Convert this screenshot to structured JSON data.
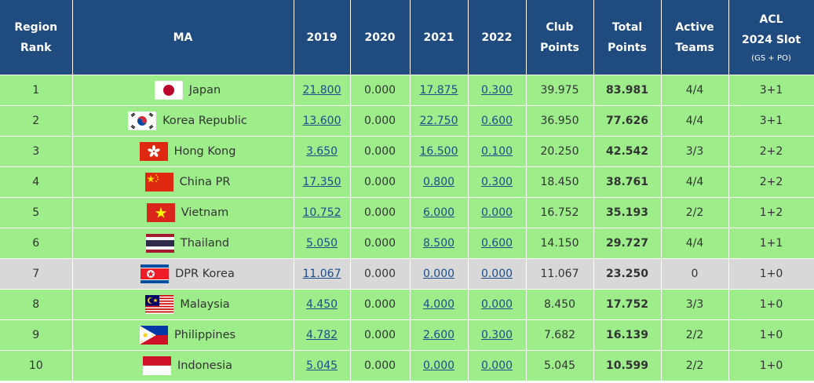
{
  "table": {
    "headers": {
      "rank": [
        "Region",
        "Rank"
      ],
      "ma": "MA",
      "y2019": "2019",
      "y2020": "2020",
      "y2021": "2021",
      "y2022": "2022",
      "club": [
        "Club",
        "Points"
      ],
      "total": [
        "Total",
        "Points"
      ],
      "active": [
        "Active",
        "Teams"
      ],
      "slot": [
        "ACL",
        "2024 Slot",
        "(GS + PO)"
      ]
    },
    "rows": [
      {
        "rank": "1",
        "flag": "japan-flag-icon",
        "ma": "Japan",
        "y2019": "21.800",
        "y2020": "0.000",
        "y2021": "17.875",
        "y2022": "0.300",
        "club": "39.975",
        "total": "83.981",
        "active": "4/4",
        "slot": "3+1"
      },
      {
        "rank": "2",
        "flag": "korea-republic-flag-icon",
        "ma": "Korea Republic",
        "y2019": "13.600",
        "y2020": "0.000",
        "y2021": "22.750",
        "y2022": "0.600",
        "club": "36.950",
        "total": "77.626",
        "active": "4/4",
        "slot": "3+1"
      },
      {
        "rank": "3",
        "flag": "hong-kong-flag-icon",
        "ma": "Hong Kong",
        "y2019": "3.650",
        "y2020": "0.000",
        "y2021": "16.500",
        "y2022": "0.100",
        "club": "20.250",
        "total": "42.542",
        "active": "3/3",
        "slot": "2+2"
      },
      {
        "rank": "4",
        "flag": "china-pr-flag-icon",
        "ma": "China PR",
        "y2019": "17.350",
        "y2020": "0.000",
        "y2021": "0.800",
        "y2022": "0.300",
        "club": "18.450",
        "total": "38.761",
        "active": "4/4",
        "slot": "2+2"
      },
      {
        "rank": "5",
        "flag": "vietnam-flag-icon",
        "ma": "Vietnam",
        "y2019": "10.752",
        "y2020": "0.000",
        "y2021": "6.000",
        "y2022": "0.000",
        "club": "16.752",
        "total": "35.193",
        "active": "2/2",
        "slot": "1+2"
      },
      {
        "rank": "6",
        "flag": "thailand-flag-icon",
        "ma": "Thailand",
        "y2019": "5.050",
        "y2020": "0.000",
        "y2021": "8.500",
        "y2022": "0.600",
        "club": "14.150",
        "total": "29.727",
        "active": "4/4",
        "slot": "1+1"
      },
      {
        "rank": "7",
        "flag": "dpr-korea-flag-icon",
        "ma": "DPR Korea",
        "y2019": "11.067",
        "y2020": "0.000",
        "y2021": "0.000",
        "y2022": "0.000",
        "club": "11.067",
        "total": "23.250",
        "active": "0",
        "slot": "1+0"
      },
      {
        "rank": "8",
        "flag": "malaysia-flag-icon",
        "ma": "Malaysia",
        "y2019": "4.450",
        "y2020": "0.000",
        "y2021": "4.000",
        "y2022": "0.000",
        "club": "8.450",
        "total": "17.752",
        "active": "3/3",
        "slot": "1+0"
      },
      {
        "rank": "9",
        "flag": "philippines-flag-icon",
        "ma": "Philippines",
        "y2019": "4.782",
        "y2020": "0.000",
        "y2021": "2.600",
        "y2022": "0.300",
        "club": "7.682",
        "total": "16.139",
        "active": "2/2",
        "slot": "1+0"
      },
      {
        "rank": "10",
        "flag": "indonesia-flag-icon",
        "ma": "Indonesia",
        "y2019": "5.045",
        "y2020": "0.000",
        "y2021": "0.000",
        "y2022": "0.000",
        "club": "5.045",
        "total": "10.599",
        "active": "2/2",
        "slot": "1+0"
      }
    ]
  },
  "colors": {
    "header_bg": "#1f4b7e",
    "row_green": "#9ded8a",
    "row_grey": "#d8d8d8",
    "link": "#1a4d8c"
  }
}
